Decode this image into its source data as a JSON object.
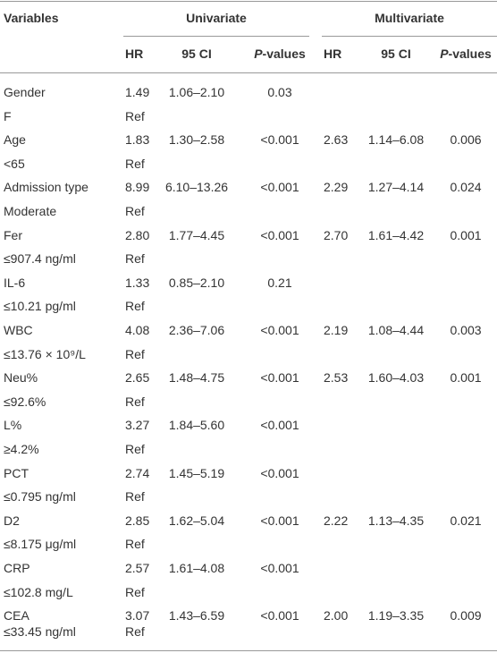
{
  "header": {
    "variables": "Variables",
    "groups": [
      "Univariate",
      "Multivariate"
    ],
    "subheaders": [
      "HR",
      "95 CI",
      "P-values",
      "HR",
      "95 CI",
      "P-values"
    ]
  },
  "table": {
    "rows": [
      [
        "Gender",
        "1.49",
        "1.06–2.10",
        "0.03",
        null,
        null,
        null
      ],
      [
        "F",
        "Ref",
        null,
        null,
        null,
        null,
        null
      ],
      [
        "Age",
        "1.83",
        "1.30–2.58",
        "<0.001",
        "2.63",
        "1.14–6.08",
        "0.006"
      ],
      [
        "<65",
        "Ref",
        null,
        null,
        null,
        null,
        null
      ],
      [
        "Admission type",
        "8.99",
        "6.10–13.26",
        "<0.001",
        "2.29",
        "1.27–4.14",
        "0.024"
      ],
      [
        "Moderate",
        "Ref",
        null,
        null,
        null,
        null,
        null
      ],
      [
        "Fer",
        "2.80",
        "1.77–4.45",
        "<0.001",
        "2.70",
        "1.61–4.42",
        "0.001"
      ],
      [
        "≤907.4 ng/ml",
        "Ref",
        null,
        null,
        null,
        null,
        null
      ],
      [
        "IL-6",
        "1.33",
        "0.85–2.10",
        "0.21",
        null,
        null,
        null
      ],
      [
        "≤10.21 pg/ml",
        "Ref",
        null,
        null,
        null,
        null,
        null
      ],
      [
        "WBC",
        "4.08",
        "2.36–7.06",
        "<0.001",
        "2.19",
        "1.08–4.44",
        "0.003"
      ],
      [
        "≤13.76 × 10⁹/L",
        "Ref",
        null,
        null,
        null,
        null,
        null
      ],
      [
        "Neu%",
        "2.65",
        "1.48–4.75",
        "<0.001",
        "2.53",
        "1.60–4.03",
        "0.001"
      ],
      [
        "≤92.6%",
        "Ref",
        null,
        null,
        null,
        null,
        null
      ],
      [
        "L%",
        "3.27",
        "1.84–5.60",
        "<0.001",
        null,
        null,
        null
      ],
      [
        "≥4.2%",
        "Ref",
        null,
        null,
        null,
        null,
        null
      ],
      [
        "PCT",
        "2.74",
        "1.45–5.19",
        "<0.001",
        null,
        null,
        null
      ],
      [
        "≤0.795 ng/ml",
        "Ref",
        null,
        null,
        null,
        null,
        null
      ],
      [
        "D2",
        "2.85",
        "1.62–5.04",
        "<0.001",
        "2.22",
        "1.13–4.35",
        "0.021"
      ],
      [
        "≤8.175 μg/ml",
        "Ref",
        null,
        null,
        null,
        null,
        null
      ],
      [
        "CRP",
        "2.57",
        "1.61–4.08",
        "<0.001",
        null,
        null,
        null
      ],
      [
        "≤102.8 mg/L",
        "Ref",
        null,
        null,
        null,
        null,
        null
      ],
      [
        "CEA",
        "3.07",
        "1.43–6.59",
        "<0.001",
        "2.00",
        "1.19–3.35",
        "0.009"
      ],
      [
        "≤33.45 ng/ml",
        "Ref",
        null,
        null,
        null,
        null,
        null
      ]
    ]
  }
}
